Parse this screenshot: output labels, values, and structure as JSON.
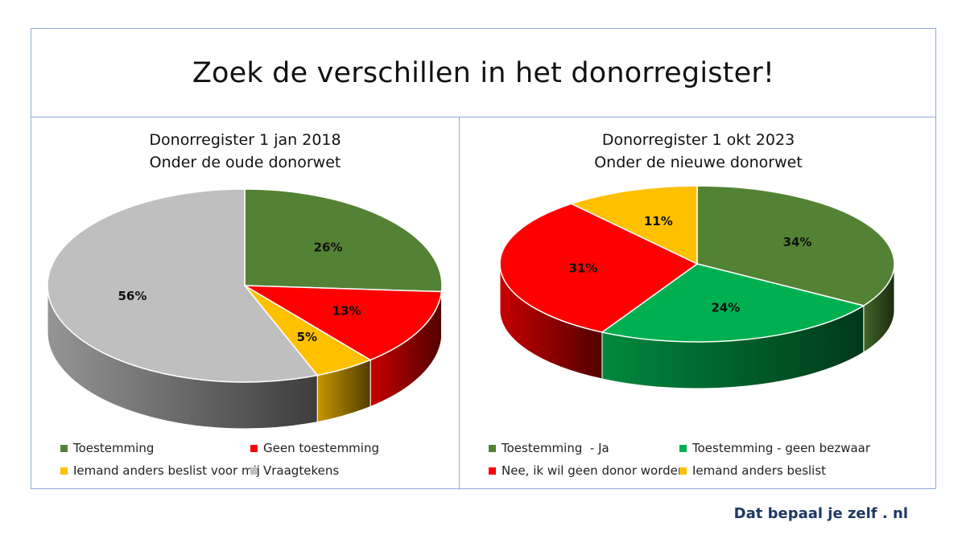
{
  "title": "Zoek de verschillen in het donorregister!",
  "footer": "Dat bepaal je zelf . nl",
  "chart_data": [
    {
      "type": "pie",
      "title": [
        "Donorregister 1 jan 2018",
        "Onder de oude donorwet"
      ],
      "slices": [
        {
          "label": "Toestemming",
          "value": 26,
          "display": "26%",
          "color": "#548235"
        },
        {
          "label": "Geen toestemming",
          "value": 13,
          "display": "13%",
          "color": "#ff0000"
        },
        {
          "label": "Iemand anders beslist voor mij",
          "value": 5,
          "display": "5%",
          "color": "#ffc000"
        },
        {
          "label": "Vraagtekens",
          "value": 56,
          "display": "56%",
          "color": "#bfbfbf"
        }
      ],
      "legend_order": [
        0,
        1,
        2,
        3
      ],
      "legend_position": "bottom"
    },
    {
      "type": "pie",
      "title": [
        "Donorregister 1 okt 2023",
        "Onder de nieuwe donorwet"
      ],
      "slices": [
        {
          "label": "Toestemming  - Ja",
          "value": 34,
          "display": "34%",
          "color": "#548235"
        },
        {
          "label": "Toestemming - geen bezwaar",
          "value": 24,
          "display": "24%",
          "color": "#00b050"
        },
        {
          "label": "Nee, ik wil geen donor worden",
          "value": 31,
          "display": "31%",
          "color": "#ff0000"
        },
        {
          "label": "Iemand anders beslist",
          "value": 11,
          "display": "11%",
          "color": "#ffc000"
        }
      ],
      "legend_order": [
        0,
        1,
        2,
        3
      ],
      "legend_position": "bottom"
    }
  ]
}
